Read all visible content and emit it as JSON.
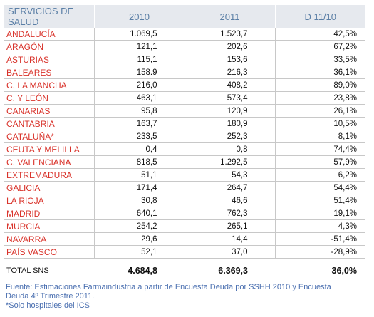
{
  "table": {
    "header": [
      "SERVICIOS DE SALUD",
      "2010",
      "2011",
      "D 11/10"
    ],
    "rows": [
      [
        "ANDALUCÍA",
        "1.069,5",
        "1.523,7",
        "42,5%"
      ],
      [
        "ARAGÓN",
        "121,1",
        "202,6",
        "67,2%"
      ],
      [
        "ASTURIAS",
        "115,1",
        "153,6",
        "33,5%"
      ],
      [
        "BALEARES",
        "158.9",
        "216,3",
        "36,1%"
      ],
      [
        "C. LA MANCHA",
        "216,0",
        "408,2",
        "89,0%"
      ],
      [
        "C. Y LEÓN",
        "463,1",
        "573,4",
        "23,8%"
      ],
      [
        "CANARIAS",
        "95,8",
        "120,9",
        "26,1%"
      ],
      [
        "CANTABRIA",
        "163,7",
        "180,9",
        "10,5%"
      ],
      [
        "CATALUÑA*",
        "233,5",
        "252,3",
        "8,1%"
      ],
      [
        "CEUTA Y MELILLA",
        "0,4",
        "0,8",
        "74,4%"
      ],
      [
        "C. VALENCIANA",
        "818,5",
        "1.292,5",
        "57,9%"
      ],
      [
        "EXTREMADURA",
        "51,1",
        "54,3",
        "6,2%"
      ],
      [
        "GALICIA",
        "171,4",
        "264,7",
        "54,4%"
      ],
      [
        "LA RIOJA",
        "30,8",
        "46,6",
        "51,4%"
      ],
      [
        "MADRID",
        "640,1",
        "762,3",
        "19,1%"
      ],
      [
        "MURCIA",
        "254,2",
        "265,1",
        "4,3%"
      ],
      [
        "NAVARRA",
        "29,6",
        "14,4",
        "-51,4%"
      ],
      [
        "PAÍS VASCO",
        "52,1",
        "37,0",
        "-28,9%"
      ]
    ],
    "total": [
      "TOTAL SNS",
      "4.684,8",
      "6.369,3",
      "36,0%"
    ]
  },
  "footer": {
    "source": "Fuente: Estimaciones Farmaindustria a partir de Encuesta Deuda por SSHH 2010 y Encuesta Deuda 4º Trimestre 2011.",
    "note": "*Solo hospitales del ICS"
  }
}
